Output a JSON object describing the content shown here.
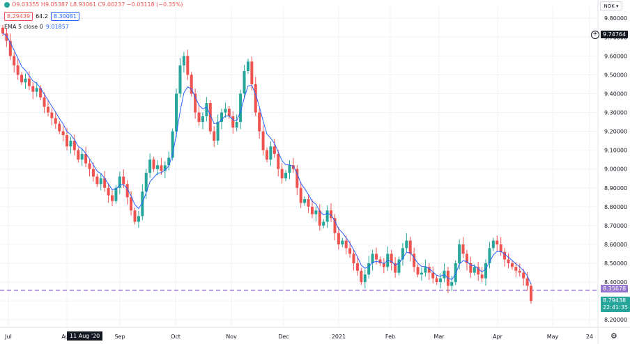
{
  "legend": {
    "ohlc": "O9.03355 H9.05387 L8.93061 C9.00237 −0.03118 (−0.35%)",
    "bid": "8.29439",
    "spread": "64.2",
    "ask": "8.30081",
    "ema_label": "EMA 5 close 0",
    "ema_value": "9.01857"
  },
  "currency_button": "NOK ▾",
  "crosshair_price": "9.74764",
  "plus_icon": "plus-icon",
  "dashed_level_label": "8.35678",
  "last_price": {
    "price": "8.79438",
    "countdown": "22:41:35"
  },
  "crosshair_date": "11 Aug '20",
  "gear_icon": "gear-icon",
  "colors": {
    "up": "#26a69a",
    "down": "#ef5350",
    "ema": "#2962ff",
    "dashed": "#9575cd"
  },
  "chart_data": {
    "type": "candlestick",
    "y_ticks": [
      "9.80000",
      "9.70000",
      "9.60000",
      "9.50000",
      "9.40000",
      "9.30000",
      "9.20000",
      "9.10000",
      "9.00000",
      "8.90000",
      "8.80000",
      "8.70000",
      "8.60000",
      "8.50000",
      "8.40000",
      "8.30000",
      "8.20000"
    ],
    "y_tick_values": [
      9.8,
      9.7,
      9.6,
      9.5,
      9.4,
      9.3,
      9.2,
      9.1,
      9.0,
      8.9,
      8.8,
      8.7,
      8.6,
      8.5,
      8.4,
      8.3,
      8.2
    ],
    "x_ticks": [
      "Jul",
      "Aug",
      "Sep",
      "Oct",
      "Nov",
      "Dec",
      "2021",
      "Feb",
      "Mar",
      "Apr",
      "May",
      "24"
    ],
    "ylim": [
      8.16,
      9.86
    ],
    "dashed_level": 8.35678,
    "closes": [
      9.72,
      9.68,
      9.6,
      9.55,
      9.5,
      9.46,
      9.48,
      9.44,
      9.41,
      9.43,
      9.38,
      9.33,
      9.3,
      9.27,
      9.24,
      9.2,
      9.18,
      9.12,
      9.15,
      9.1,
      9.05,
      9.08,
      9.03,
      9.0,
      8.96,
      8.92,
      8.95,
      8.9,
      8.86,
      8.83,
      8.9,
      8.96,
      8.92,
      8.85,
      8.78,
      8.72,
      8.75,
      8.88,
      8.98,
      9.05,
      9.0,
      9.02,
      8.99,
      9.02,
      9.06,
      9.2,
      9.4,
      9.55,
      9.6,
      9.5,
      9.4,
      9.3,
      9.25,
      9.28,
      9.35,
      9.2,
      9.15,
      9.25,
      9.3,
      9.32,
      9.28,
      9.22,
      9.25,
      9.4,
      9.52,
      9.57,
      9.45,
      9.3,
      9.2,
      9.1,
      9.05,
      9.12,
      9.08,
      9.0,
      8.95,
      8.98,
      9.02,
      9.0,
      8.9,
      8.82,
      8.84,
      8.8,
      8.76,
      8.78,
      8.7,
      8.72,
      8.78,
      8.74,
      8.66,
      8.6,
      8.62,
      8.58,
      8.55,
      8.5,
      8.46,
      8.4,
      8.44,
      8.5,
      8.55,
      8.52,
      8.5,
      8.48,
      8.55,
      8.5,
      8.45,
      8.52,
      8.58,
      8.62,
      8.55,
      8.48,
      8.44,
      8.45,
      8.48,
      8.45,
      8.42,
      8.4,
      8.42,
      8.46,
      8.38,
      8.4,
      8.5,
      8.6,
      8.55,
      8.5,
      8.45,
      8.48,
      8.44,
      8.42,
      8.5,
      8.58,
      8.62,
      8.6,
      8.56,
      8.52,
      8.5,
      8.48,
      8.46,
      8.45,
      8.42,
      8.38,
      8.3
    ]
  }
}
